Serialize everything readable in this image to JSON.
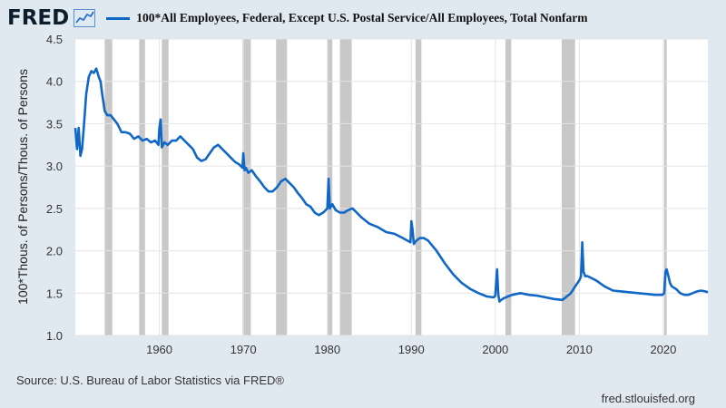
{
  "header": {
    "logo_text": "FRED",
    "series_title": "100*All Employees, Federal, Except U.S. Postal Service/All Employees, Total Nonfarm"
  },
  "footer": {
    "source": "Source: U.S. Bureau of Labor Statistics via FRED®",
    "site": "fred.stlouisfed.org"
  },
  "chart_data": {
    "type": "line",
    "title": "100*All Employees, Federal, Except U.S. Postal Service/All Employees, Total Nonfarm",
    "xlabel": "",
    "ylabel": "100*Thous. of Persons/Thous. of Persons",
    "xlim": [
      1950.0,
      2025.3
    ],
    "ylim": [
      1.0,
      4.5
    ],
    "y_ticks": [
      1.0,
      1.5,
      2.0,
      2.5,
      3.0,
      3.5,
      4.0,
      4.5
    ],
    "y_tick_labels": [
      "1.0",
      "1.5",
      "2.0",
      "2.5",
      "3.0",
      "3.5",
      "4.0",
      "4.5"
    ],
    "x_ticks": [
      1960,
      1970,
      1980,
      1990,
      2000,
      2010,
      2020
    ],
    "x_tick_labels": [
      "1960",
      "1970",
      "1980",
      "1990",
      "2000",
      "2010",
      "2020"
    ],
    "grid": true,
    "line_color": "#1167c5",
    "recession_color": "#c8c8c8",
    "recessions": [
      [
        1953.5,
        1954.4
      ],
      [
        1957.6,
        1958.3
      ],
      [
        1960.3,
        1961.1
      ],
      [
        1969.9,
        1970.9
      ],
      [
        1973.9,
        1975.2
      ],
      [
        1980.0,
        1980.6
      ],
      [
        1981.5,
        1982.9
      ],
      [
        1990.5,
        1991.2
      ],
      [
        2001.2,
        2001.9
      ],
      [
        2007.9,
        2009.5
      ],
      [
        2020.1,
        2020.4
      ]
    ],
    "series": [
      {
        "x": [
          1950.0,
          1950.2,
          1950.4,
          1950.6,
          1950.8,
          1951.0,
          1951.3,
          1951.6,
          1951.9,
          1952.2,
          1952.5,
          1952.8,
          1953.0,
          1953.2,
          1953.5,
          1953.8,
          1954.2,
          1954.6,
          1955.0,
          1955.5,
          1956.0,
          1956.5,
          1957.0,
          1957.5,
          1958.0,
          1958.5,
          1959.0,
          1959.5,
          1959.9,
          1960.0,
          1960.15,
          1960.3,
          1960.6,
          1961.0,
          1961.5,
          1962.0,
          1962.5,
          1963.0,
          1963.5,
          1964.0,
          1964.5,
          1965.0,
          1965.5,
          1966.0,
          1966.5,
          1967.0,
          1967.5,
          1968.0,
          1968.5,
          1969.0,
          1969.5,
          1969.9,
          1970.0,
          1970.15,
          1970.3,
          1970.6,
          1971.0,
          1971.5,
          1972.0,
          1972.5,
          1973.0,
          1973.5,
          1974.0,
          1974.5,
          1975.0,
          1975.5,
          1976.0,
          1976.5,
          1977.0,
          1977.5,
          1978.0,
          1978.5,
          1979.0,
          1979.5,
          1980.0,
          1980.15,
          1980.3,
          1980.6,
          1981.0,
          1981.5,
          1982.0,
          1982.5,
          1983.0,
          1983.5,
          1984.0,
          1985.0,
          1986.0,
          1987.0,
          1988.0,
          1989.0,
          1989.9,
          1990.0,
          1990.15,
          1990.3,
          1990.6,
          1991.0,
          1991.5,
          1992.0,
          1993.0,
          1994.0,
          1995.0,
          1996.0,
          1997.0,
          1998.0,
          1999.0,
          1999.8,
          2000.0,
          2000.2,
          2000.35,
          2000.5,
          2000.7,
          2001.0,
          2002.0,
          2003.0,
          2004.0,
          2005.0,
          2006.0,
          2007.0,
          2008.0,
          2009.0,
          2009.5,
          2010.0,
          2010.2,
          2010.35,
          2010.5,
          2010.7,
          2011.0,
          2012.0,
          2013.0,
          2014.0,
          2015.0,
          2016.0,
          2017.0,
          2018.0,
          2019.0,
          2019.9,
          2020.1,
          2020.25,
          2020.4,
          2020.6,
          2020.8,
          2021.0,
          2021.5,
          2022.0,
          2022.5,
          2023.0,
          2023.5,
          2024.0,
          2024.5,
          2025.0,
          2025.3
        ],
        "values": [
          3.45,
          3.2,
          3.45,
          3.12,
          3.2,
          3.45,
          3.85,
          4.05,
          4.12,
          4.1,
          4.15,
          4.05,
          4.0,
          3.85,
          3.65,
          3.6,
          3.6,
          3.55,
          3.5,
          3.4,
          3.4,
          3.38,
          3.32,
          3.35,
          3.3,
          3.32,
          3.28,
          3.3,
          3.25,
          3.45,
          3.55,
          3.22,
          3.28,
          3.25,
          3.3,
          3.3,
          3.35,
          3.3,
          3.25,
          3.2,
          3.1,
          3.06,
          3.08,
          3.15,
          3.22,
          3.25,
          3.2,
          3.15,
          3.1,
          3.05,
          3.02,
          2.98,
          3.15,
          2.95,
          2.98,
          2.92,
          2.95,
          2.88,
          2.82,
          2.75,
          2.7,
          2.7,
          2.75,
          2.82,
          2.85,
          2.8,
          2.75,
          2.68,
          2.62,
          2.55,
          2.52,
          2.45,
          2.42,
          2.45,
          2.5,
          2.85,
          2.5,
          2.55,
          2.48,
          2.45,
          2.45,
          2.48,
          2.5,
          2.45,
          2.4,
          2.32,
          2.28,
          2.22,
          2.2,
          2.15,
          2.1,
          2.35,
          2.25,
          2.08,
          2.12,
          2.15,
          2.15,
          2.12,
          2.0,
          1.85,
          1.72,
          1.62,
          1.55,
          1.5,
          1.46,
          1.45,
          1.47,
          1.78,
          1.48,
          1.4,
          1.42,
          1.44,
          1.48,
          1.5,
          1.48,
          1.47,
          1.45,
          1.43,
          1.42,
          1.5,
          1.58,
          1.65,
          1.7,
          2.1,
          1.75,
          1.7,
          1.7,
          1.65,
          1.58,
          1.53,
          1.52,
          1.51,
          1.5,
          1.49,
          1.48,
          1.48,
          1.5,
          1.75,
          1.78,
          1.7,
          1.62,
          1.58,
          1.55,
          1.5,
          1.48,
          1.48,
          1.5,
          1.52,
          1.53,
          1.52,
          1.51
        ]
      }
    ]
  }
}
